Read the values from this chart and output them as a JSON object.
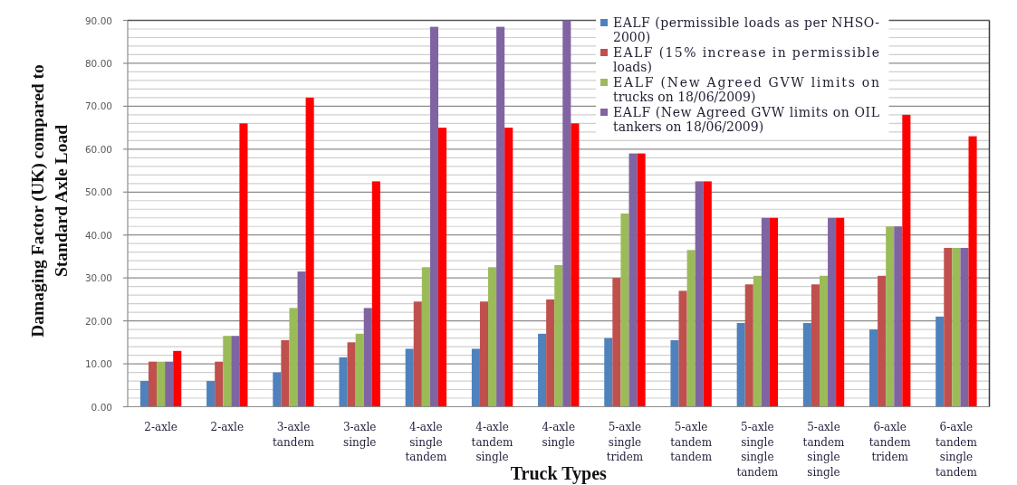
{
  "chart_data": {
    "type": "bar",
    "xlabel": "Truck Types",
    "ylabel": "Damaging Factor (UK) compared to Standard Axle Load",
    "categories": [
      "2-axle",
      "2-axle",
      "3-axle tandem",
      "3-axle single",
      "4-axle single tandem",
      "4-axle tandem single",
      "4-axle single",
      "5-axle single tridem",
      "5-axle tandem tandem",
      "5-axle single single tandem",
      "5-axle tandem single single",
      "6-axle tandem tridem",
      "6-axle tandem single tandem"
    ],
    "series": [
      {
        "name": "EALF (permissible loads as per NHSO-2000)",
        "color": "#4f81bd",
        "values": [
          6,
          6,
          8,
          11.5,
          13.5,
          13.5,
          17,
          16,
          15.5,
          19.5,
          19.5,
          18,
          21
        ]
      },
      {
        "name": "EALF (15% increase in permissible loads)",
        "color": "#c0504d",
        "values": [
          10.5,
          10.5,
          15.5,
          15,
          24.5,
          24.5,
          25,
          30,
          27,
          28.5,
          28.5,
          30.5,
          37
        ]
      },
      {
        "name": "EALF (New Agreed GVW limits on trucks on 18/06/2009)",
        "color": "#9bbb59",
        "values": [
          10.5,
          16.5,
          23,
          17,
          32.5,
          32.5,
          33,
          45,
          36.5,
          30.5,
          30.5,
          42,
          37
        ]
      },
      {
        "name": "EALF (New Agreed GVW limits on OIL tankers on 18/06/2009)",
        "color": "#8064a2",
        "values": [
          10.5,
          16.5,
          31.5,
          23,
          88.5,
          88.5,
          90,
          59,
          52.5,
          44,
          44,
          42,
          37
        ]
      },
      {
        "color": "#ff0000",
        "values": [
          13,
          66,
          72,
          52.5,
          65,
          65,
          66,
          59,
          52.5,
          44,
          44,
          68,
          63
        ]
      }
    ],
    "ylim": [
      0,
      90
    ],
    "yticks": [
      {
        "value": 0,
        "label": "0.00"
      },
      {
        "value": 2,
        "label": null
      },
      {
        "value": 4,
        "label": null
      },
      {
        "value": 6,
        "label": null
      },
      {
        "value": 8,
        "label": null
      },
      {
        "value": 10,
        "label": "10.00"
      },
      {
        "value": 12,
        "label": null
      },
      {
        "value": 14,
        "label": null
      },
      {
        "value": 16,
        "label": null
      },
      {
        "value": 18,
        "label": null
      },
      {
        "value": 20,
        "label": "20.00"
      },
      {
        "value": 22,
        "label": null
      },
      {
        "value": 24,
        "label": null
      },
      {
        "value": 26,
        "label": null
      },
      {
        "value": 28,
        "label": null
      },
      {
        "value": 30,
        "label": "30.00"
      },
      {
        "value": 32,
        "label": null
      },
      {
        "value": 34,
        "label": null
      },
      {
        "value": 36,
        "label": null
      },
      {
        "value": 38,
        "label": null
      },
      {
        "value": 40,
        "label": "40.00"
      },
      {
        "value": 42,
        "label": null
      },
      {
        "value": 44,
        "label": null
      },
      {
        "value": 46,
        "label": null
      },
      {
        "value": 48,
        "label": null
      },
      {
        "value": 50,
        "label": "50.00"
      },
      {
        "value": 52,
        "label": null
      },
      {
        "value": 54,
        "label": null
      },
      {
        "value": 56,
        "label": null
      },
      {
        "value": 58,
        "label": null
      },
      {
        "value": 60,
        "label": "60.00"
      },
      {
        "value": 62,
        "label": null
      },
      {
        "value": 64,
        "label": null
      },
      {
        "value": 66,
        "label": null
      },
      {
        "value": 68,
        "label": null
      },
      {
        "value": 70,
        "label": "70.00"
      },
      {
        "value": 72,
        "label": null
      },
      {
        "value": 74,
        "label": null
      },
      {
        "value": 76,
        "label": null
      },
      {
        "value": 78,
        "label": null
      },
      {
        "value": 80,
        "label": "80.00"
      },
      {
        "value": 82,
        "label": null
      },
      {
        "value": 84,
        "label": null
      },
      {
        "value": 86,
        "label": null
      },
      {
        "value": 88,
        "label": null
      },
      {
        "value": 90,
        "label": "90.00"
      }
    ],
    "grid": "y",
    "legend": "top right"
  }
}
